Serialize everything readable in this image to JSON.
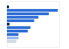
{
  "chart_data": {
    "type": "bar",
    "orientation": "horizontal",
    "categories": [
      null,
      null,
      null,
      null,
      null,
      null,
      null,
      null,
      null,
      null,
      null
    ],
    "values": [
      4,
      97,
      80,
      60,
      52,
      5,
      45,
      40,
      22,
      22,
      18
    ],
    "colors": [
      "#0f2a4a",
      "#2f6fd6",
      "#2f6fd6",
      "#2f6fd6",
      "#2f6fd6",
      "#0f2a4a",
      "#2f6fd6",
      "#2f6fd6",
      "#2f6fd6",
      "#9dbbe8",
      "#cfd8e3"
    ],
    "xlim": [
      0,
      100
    ],
    "xticks": [],
    "grid": false,
    "tick_labels": false
  }
}
